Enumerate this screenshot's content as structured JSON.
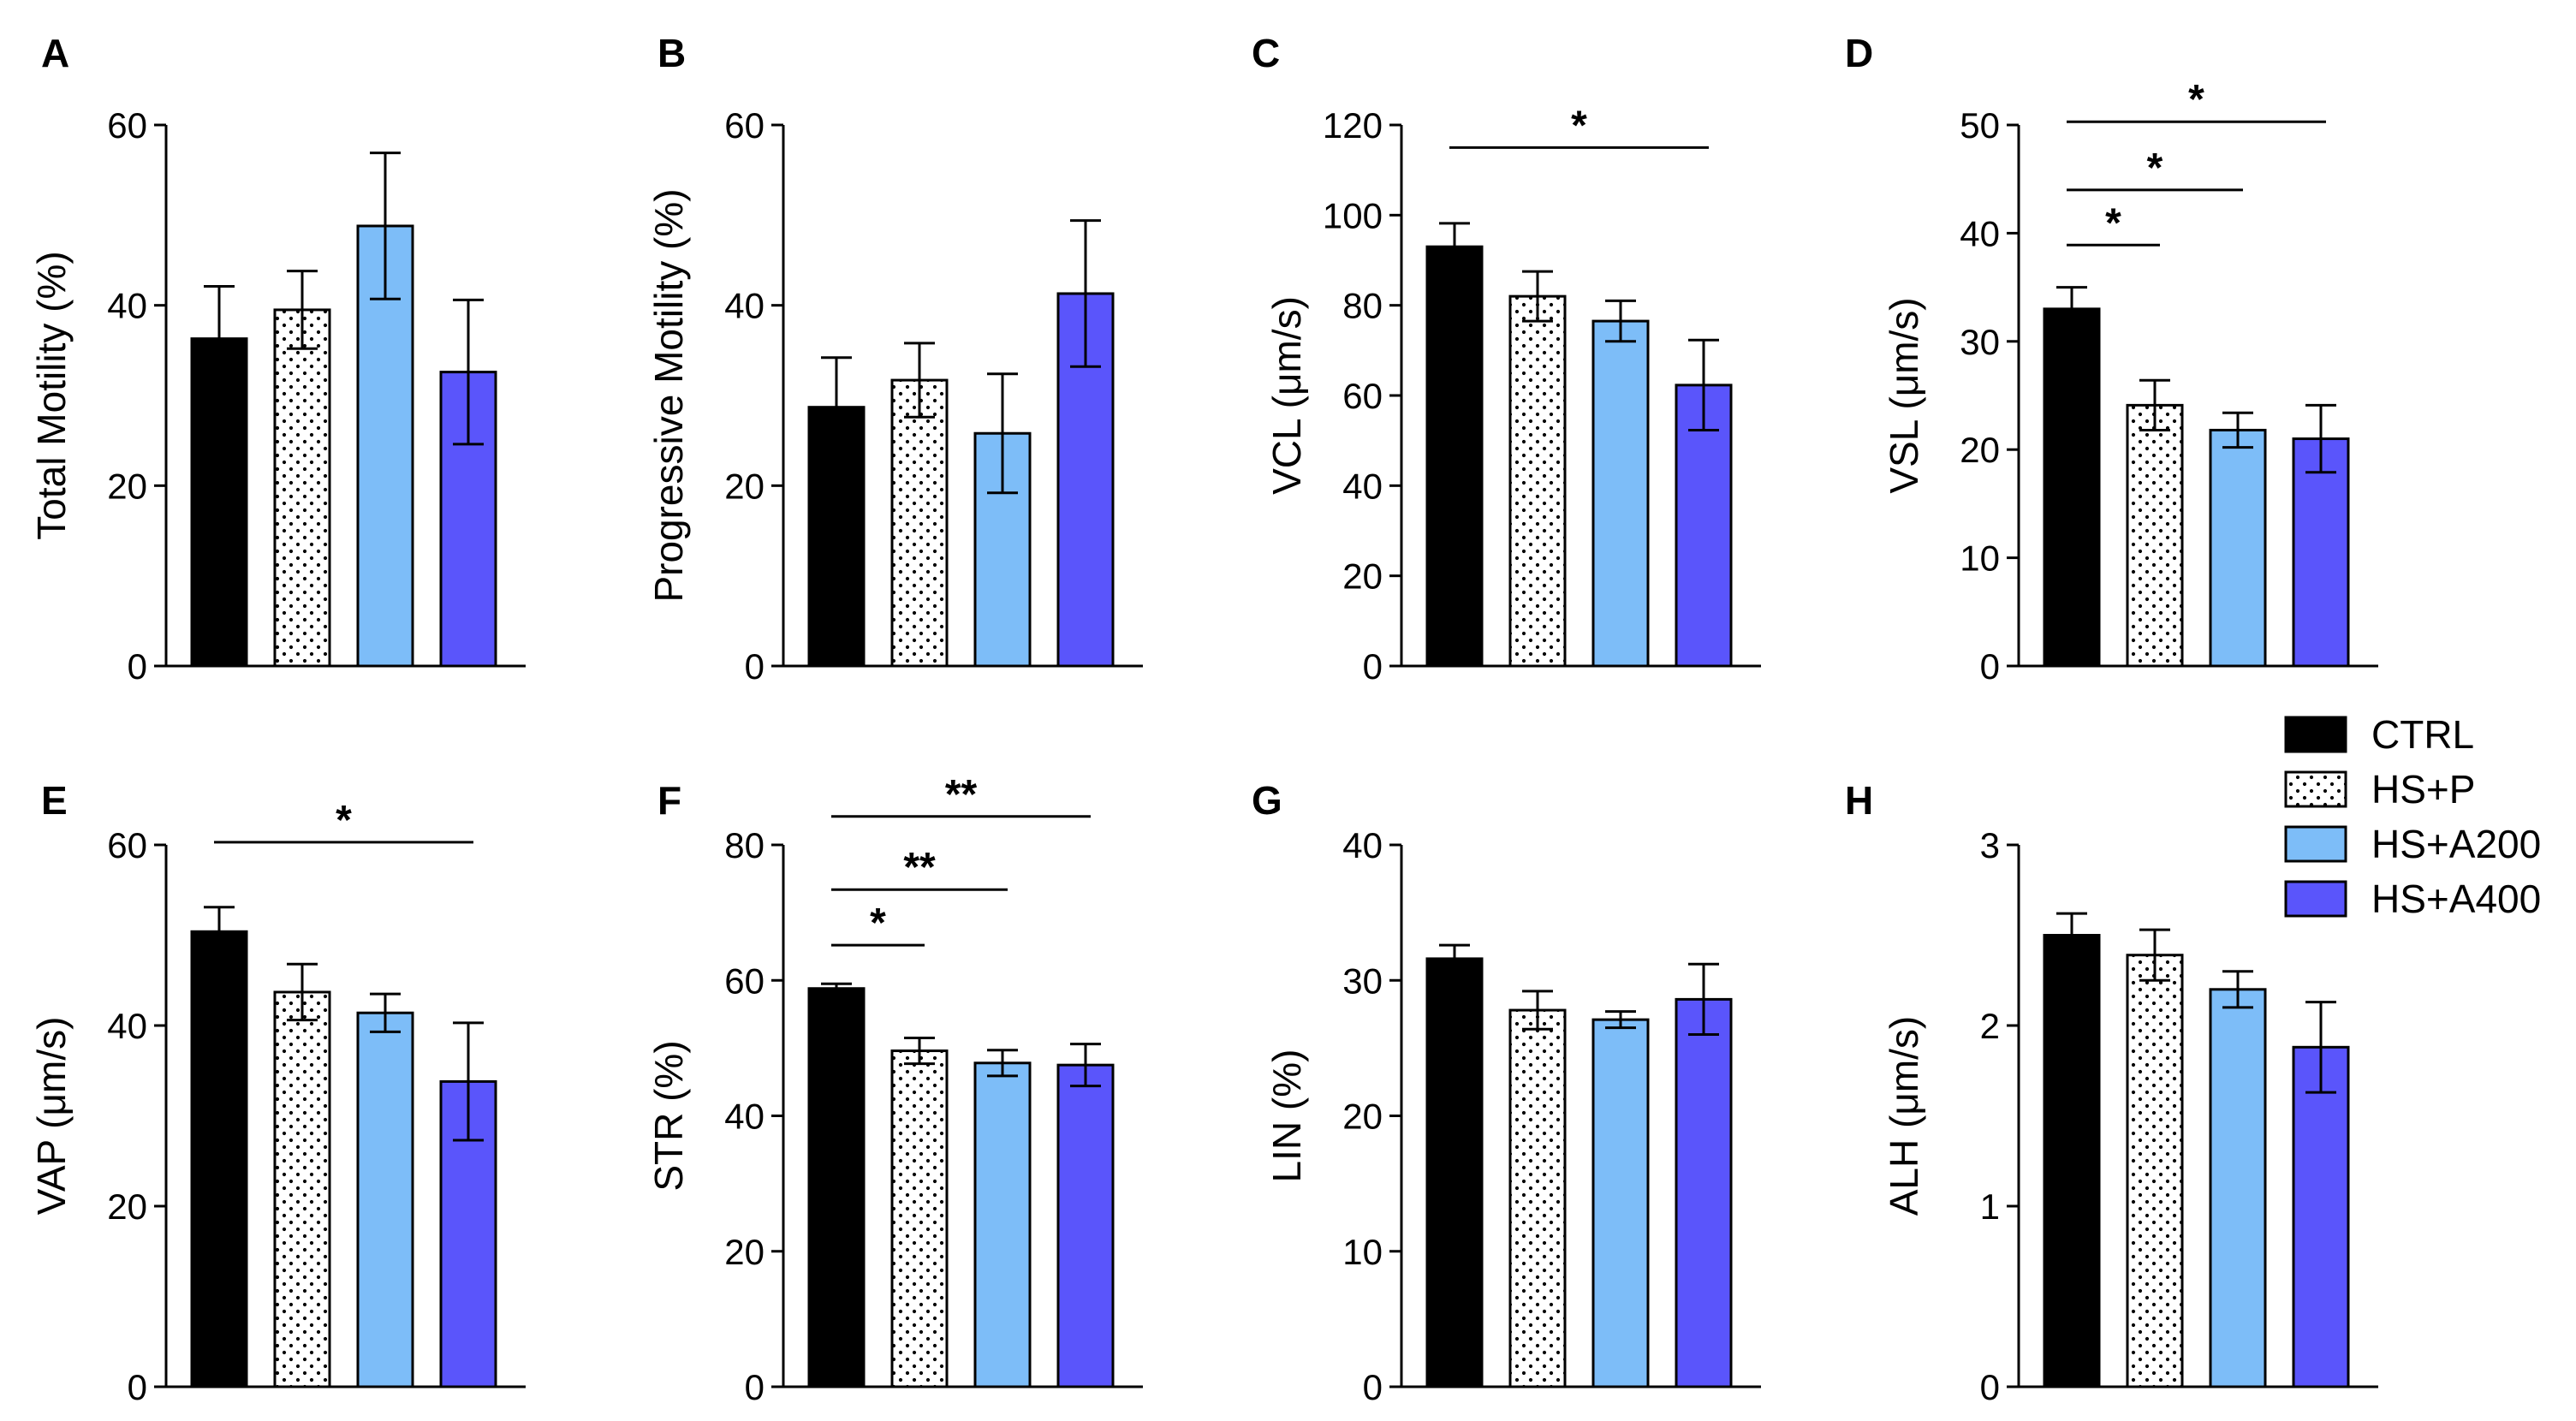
{
  "colors": {
    "CTRL": "#000000",
    "HS+P": "#ffffff",
    "HS+A200": "#7dbdf8",
    "HS+A400": "#5a55fb"
  },
  "legend": {
    "placement": "right, between top and bottom rows",
    "items": [
      {
        "label": "CTRL",
        "pattern": "solid"
      },
      {
        "label": "HS+P",
        "pattern": "dotted"
      },
      {
        "label": "HS+A200",
        "pattern": "solid"
      },
      {
        "label": "HS+A400",
        "pattern": "solid"
      }
    ]
  },
  "chart_data": [
    {
      "panel": "A",
      "type": "bar",
      "ylabel": "Total Motility (%)",
      "categories": [
        "CTRL",
        "HS+P",
        "HS+A200",
        "HS+A400"
      ],
      "values": [
        36.3,
        39.5,
        48.8,
        32.6
      ],
      "errors": [
        5.8,
        4.3,
        8.1,
        8.0
      ],
      "ylim": [
        0,
        60
      ],
      "yticks": [
        0,
        20,
        40,
        60
      ],
      "significance": []
    },
    {
      "panel": "B",
      "type": "bar",
      "ylabel": "Progressive Motility (%)",
      "categories": [
        "CTRL",
        "HS+P",
        "HS+A200",
        "HS+A400"
      ],
      "values": [
        28.7,
        31.7,
        25.8,
        41.3
      ],
      "errors": [
        5.5,
        4.1,
        6.6,
        8.1
      ],
      "ylim": [
        0,
        60
      ],
      "yticks": [
        0,
        20,
        40,
        60
      ],
      "significance": []
    },
    {
      "panel": "C",
      "type": "bar",
      "ylabel": "VCL (μm/s)",
      "categories": [
        "CTRL",
        "HS+P",
        "HS+A200",
        "HS+A400"
      ],
      "values": [
        93.0,
        82.0,
        76.5,
        62.3
      ],
      "errors": [
        5.2,
        5.5,
        4.5,
        10.0
      ],
      "ylim": [
        0,
        120
      ],
      "yticks": [
        0,
        20,
        40,
        60,
        80,
        100,
        120
      ],
      "significance": [
        {
          "from": 0,
          "to": 3,
          "label": "*",
          "y": 115
        }
      ]
    },
    {
      "panel": "D",
      "type": "bar",
      "ylabel": "VSL (μm/s)",
      "categories": [
        "CTRL",
        "HS+P",
        "HS+A200",
        "HS+A400"
      ],
      "values": [
        33.0,
        24.1,
        21.8,
        21.0
      ],
      "errors": [
        2.0,
        2.3,
        1.6,
        3.1
      ],
      "ylim": [
        0,
        50
      ],
      "yticks": [
        0,
        10,
        20,
        30,
        40,
        50
      ],
      "significance": [
        {
          "from": 0,
          "to": 1,
          "label": "*",
          "y": 38.9
        },
        {
          "from": 0,
          "to": 2,
          "label": "*",
          "y": 44.0
        },
        {
          "from": 0,
          "to": 3,
          "label": "*",
          "y": 50.3
        }
      ]
    },
    {
      "panel": "E",
      "type": "bar",
      "ylabel": "VAP (μm/s)",
      "categories": [
        "CTRL",
        "HS+P",
        "HS+A200",
        "HS+A400"
      ],
      "values": [
        50.4,
        43.7,
        41.4,
        33.8
      ],
      "errors": [
        2.7,
        3.1,
        2.1,
        6.5
      ],
      "ylim": [
        0,
        60
      ],
      "yticks": [
        0,
        20,
        40,
        60
      ],
      "significance": [
        {
          "from": 0,
          "to": 3,
          "label": "*",
          "y": 60.3
        }
      ]
    },
    {
      "panel": "F",
      "type": "bar",
      "ylabel": "STR (%)",
      "categories": [
        "CTRL",
        "HS+P",
        "HS+A200",
        "HS+A400"
      ],
      "values": [
        58.8,
        49.6,
        47.8,
        47.5
      ],
      "errors": [
        0.7,
        1.9,
        1.9,
        3.1
      ],
      "ylim": [
        0,
        80
      ],
      "yticks": [
        0,
        20,
        40,
        60,
        80
      ],
      "significance": [
        {
          "from": 0,
          "to": 1,
          "label": "*",
          "y": 65.2
        },
        {
          "from": 0,
          "to": 2,
          "label": "**",
          "y": 73.4
        },
        {
          "from": 0,
          "to": 3,
          "label": "**",
          "y": 84.2
        }
      ]
    },
    {
      "panel": "G",
      "type": "bar",
      "ylabel": "LIN (%)",
      "categories": [
        "CTRL",
        "HS+P",
        "HS+A200",
        "HS+A400"
      ],
      "values": [
        31.6,
        27.8,
        27.1,
        28.6
      ],
      "errors": [
        1.0,
        1.4,
        0.6,
        2.6
      ],
      "ylim": [
        0,
        40
      ],
      "yticks": [
        0,
        10,
        20,
        30,
        40
      ],
      "significance": []
    },
    {
      "panel": "H",
      "type": "bar",
      "ylabel": "ALH (μm/s)",
      "categories": [
        "CTRL",
        "HS+P",
        "HS+A200",
        "HS+A400"
      ],
      "values": [
        2.5,
        2.39,
        2.2,
        1.88
      ],
      "errors": [
        0.12,
        0.14,
        0.1,
        0.25
      ],
      "ylim": [
        0,
        3
      ],
      "yticks": [
        0,
        1,
        2,
        3
      ],
      "significance": []
    }
  ]
}
